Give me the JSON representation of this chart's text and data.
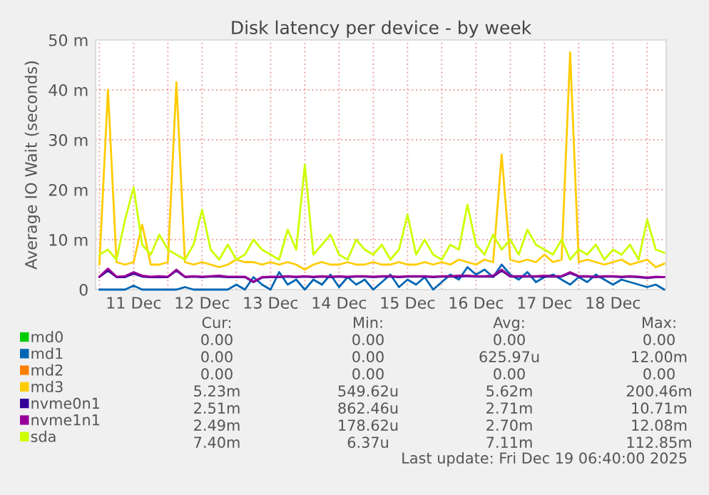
{
  "chart_data": {
    "type": "line",
    "title": "Disk latency per device - by week",
    "ylabel": "Average IO Wait (seconds)",
    "x": [
      "2025-12-11T00:00",
      "2025-12-11T03:00",
      "2025-12-11T06:00",
      "2025-12-11T09:00",
      "2025-12-11T12:00",
      "2025-12-11T15:00",
      "2025-12-11T18:00",
      "2025-12-11T21:00",
      "2025-12-12T00:00",
      "2025-12-12T03:00",
      "2025-12-12T06:00",
      "2025-12-12T09:00",
      "2025-12-12T12:00",
      "2025-12-12T15:00",
      "2025-12-12T18:00",
      "2025-12-12T21:00",
      "2025-12-13T00:00",
      "2025-12-13T03:00",
      "2025-12-13T06:00",
      "2025-12-13T09:00",
      "2025-12-13T12:00",
      "2025-12-13T15:00",
      "2025-12-13T18:00",
      "2025-12-13T21:00",
      "2025-12-14T00:00",
      "2025-12-14T03:00",
      "2025-12-14T06:00",
      "2025-12-14T09:00",
      "2025-12-14T12:00",
      "2025-12-14T15:00",
      "2025-12-14T18:00",
      "2025-12-14T21:00",
      "2025-12-15T00:00",
      "2025-12-15T03:00",
      "2025-12-15T06:00",
      "2025-12-15T09:00",
      "2025-12-15T12:00",
      "2025-12-15T15:00",
      "2025-12-15T18:00",
      "2025-12-15T21:00",
      "2025-12-16T00:00",
      "2025-12-16T03:00",
      "2025-12-16T06:00",
      "2025-12-16T09:00",
      "2025-12-16T12:00",
      "2025-12-16T15:00",
      "2025-12-16T18:00",
      "2025-12-16T21:00",
      "2025-12-17T00:00",
      "2025-12-17T03:00",
      "2025-12-17T06:00",
      "2025-12-17T09:00",
      "2025-12-17T12:00",
      "2025-12-17T15:00",
      "2025-12-17T18:00",
      "2025-12-17T21:00",
      "2025-12-18T00:00",
      "2025-12-18T03:00",
      "2025-12-18T06:00",
      "2025-12-18T09:00",
      "2025-12-18T12:00",
      "2025-12-18T15:00",
      "2025-12-18T18:00",
      "2025-12-18T21:00",
      "2025-12-19T00:00",
      "2025-12-19T03:00",
      "2025-12-19T06:00"
    ],
    "series": [
      {
        "name": "md0",
        "color": "#00cc00",
        "values": [
          null,
          null,
          null,
          null,
          null,
          null,
          null,
          null,
          null,
          null,
          null,
          null,
          null,
          null,
          null,
          null,
          null,
          null,
          null,
          null,
          null,
          null,
          null,
          null,
          null,
          null,
          null,
          null,
          null,
          null,
          null,
          null,
          null,
          null,
          null,
          null,
          null,
          null,
          null,
          null,
          null,
          null,
          null,
          null,
          null,
          null,
          null,
          null,
          null,
          null,
          null,
          null,
          null,
          null,
          null,
          null,
          null,
          null,
          null,
          null,
          null,
          null,
          null,
          null,
          null,
          null,
          null
        ]
      },
      {
        "name": "md1",
        "color": "#0066b3",
        "values": [
          0,
          0,
          0,
          0,
          0.8,
          0,
          0,
          0,
          0,
          0,
          0.5,
          0,
          0,
          0,
          0,
          0,
          1,
          0,
          2.5,
          1,
          0,
          3.5,
          1,
          2,
          0,
          2,
          1,
          3,
          0.5,
          2.5,
          1,
          2,
          0,
          1.5,
          3,
          0.5,
          2,
          1,
          2.5,
          0,
          1.5,
          3,
          2,
          4.5,
          3,
          4,
          2.5,
          5,
          3,
          2,
          3.5,
          1.5,
          2.5,
          3,
          2,
          1,
          2.5,
          1.5,
          3,
          2,
          1,
          2,
          1.5,
          1,
          0.5,
          1,
          0
        ]
      },
      {
        "name": "md2",
        "color": "#ff8000",
        "values": [
          null,
          null,
          null,
          null,
          null,
          null,
          null,
          null,
          null,
          null,
          null,
          null,
          null,
          null,
          null,
          null,
          null,
          null,
          null,
          null,
          null,
          null,
          null,
          null,
          null,
          null,
          null,
          null,
          null,
          null,
          null,
          null,
          null,
          null,
          null,
          null,
          null,
          null,
          null,
          null,
          null,
          null,
          null,
          null,
          null,
          null,
          null,
          null,
          null,
          null,
          null,
          null,
          null,
          null,
          null,
          null,
          null,
          null,
          null,
          null,
          null,
          null,
          null,
          null,
          null,
          null,
          null
        ]
      },
      {
        "name": "md3",
        "color": "#ffcc00",
        "values": [
          5,
          40,
          5.5,
          5,
          5.5,
          13,
          5,
          5,
          5.5,
          41.5,
          5.5,
          5,
          5.5,
          5,
          4.5,
          5,
          6,
          5.5,
          5.5,
          5,
          5.5,
          5,
          5.5,
          5,
          4,
          5,
          5.5,
          5,
          5,
          5.5,
          5,
          5,
          5.5,
          5,
          5,
          5.5,
          5,
          5,
          5.5,
          5,
          5.5,
          5,
          6,
          5.5,
          5,
          6,
          5.5,
          27,
          6,
          5.5,
          6,
          5.5,
          7,
          5.5,
          6,
          47.5,
          5.5,
          6,
          5.5,
          5,
          5.5,
          6,
          5,
          5.5,
          6,
          4.5,
          5.2
        ]
      },
      {
        "name": "nvme0n1",
        "color": "#330099",
        "values": [
          2.5,
          3.8,
          2.5,
          2.5,
          3.2,
          2.6,
          2.5,
          2.5,
          2.5,
          3.8,
          2.5,
          2.6,
          2.5,
          2.6,
          2.6,
          2.5,
          2.5,
          2.5,
          1.5,
          2.4,
          2.5,
          2.5,
          2.6,
          2.5,
          2.6,
          2.5,
          2.6,
          2.5,
          2.6,
          2.5,
          2.6,
          2.6,
          2.5,
          2.6,
          2.6,
          2.5,
          2.6,
          2.6,
          2.6,
          2.5,
          2.6,
          2.6,
          2.6,
          2.7,
          2.6,
          2.6,
          2.6,
          3.8,
          2.6,
          2.6,
          2.6,
          2.6,
          2.6,
          2.6,
          2.6,
          3.3,
          2.6,
          2.6,
          2.5,
          2.6,
          2.6,
          2.5,
          2.6,
          2.5,
          2.3,
          2.5,
          2.5
        ]
      },
      {
        "name": "nvme1n1",
        "color": "#990099",
        "values": [
          2.6,
          4.2,
          2.6,
          2.7,
          3.5,
          2.8,
          2.6,
          2.7,
          2.6,
          4,
          2.6,
          2.7,
          2.6,
          2.7,
          2.8,
          2.6,
          2.6,
          2.6,
          1.6,
          2.5,
          2.6,
          2.6,
          2.7,
          2.6,
          2.7,
          2.6,
          2.7,
          2.6,
          2.7,
          2.6,
          2.7,
          2.7,
          2.6,
          2.7,
          2.7,
          2.6,
          2.7,
          2.7,
          2.7,
          2.6,
          2.7,
          2.7,
          2.8,
          2.8,
          2.7,
          2.7,
          2.8,
          4,
          2.7,
          2.7,
          2.7,
          2.7,
          2.8,
          2.7,
          2.7,
          3.5,
          2.7,
          2.7,
          2.6,
          2.7,
          2.7,
          2.6,
          2.7,
          2.6,
          2.4,
          2.6,
          2.5
        ]
      },
      {
        "name": "sda",
        "color": "#ccff00",
        "values": [
          7,
          8,
          6,
          14,
          20.5,
          9,
          7,
          11,
          8,
          7,
          6,
          9,
          16,
          8,
          6,
          9,
          6,
          7,
          10,
          8,
          7,
          6,
          12,
          8,
          25,
          7,
          9,
          11,
          7,
          6,
          10,
          8,
          7,
          9,
          6,
          8,
          15,
          7,
          10,
          7,
          6,
          9,
          8,
          17,
          9,
          7,
          11,
          8,
          10,
          7,
          12,
          9,
          8,
          7,
          10,
          6,
          8,
          7,
          9,
          6,
          8,
          7,
          9,
          6,
          14,
          8,
          7.4
        ]
      }
    ],
    "xlim": [
      "2025-12-10T22:40",
      "2025-12-19T06:40"
    ],
    "xticks": [
      {
        "value": "2025-12-11T00:00",
        "label": null
      },
      {
        "value": "2025-12-11T12:00",
        "label": "11 Dec"
      },
      {
        "value": "2025-12-12T00:00",
        "label": null
      },
      {
        "value": "2025-12-12T12:00",
        "label": "12 Dec"
      },
      {
        "value": "2025-12-13T00:00",
        "label": null
      },
      {
        "value": "2025-12-13T12:00",
        "label": "13 Dec"
      },
      {
        "value": "2025-12-14T00:00",
        "label": null
      },
      {
        "value": "2025-12-14T12:00",
        "label": "14 Dec"
      },
      {
        "value": "2025-12-15T00:00",
        "label": null
      },
      {
        "value": "2025-12-15T12:00",
        "label": "15 Dec"
      },
      {
        "value": "2025-12-16T00:00",
        "label": null
      },
      {
        "value": "2025-12-16T12:00",
        "label": "16 Dec"
      },
      {
        "value": "2025-12-17T00:00",
        "label": null
      },
      {
        "value": "2025-12-17T12:00",
        "label": "17 Dec"
      },
      {
        "value": "2025-12-18T00:00",
        "label": null
      },
      {
        "value": "2025-12-18T12:00",
        "label": "18 Dec"
      },
      {
        "value": "2025-12-19T00:00",
        "label": null
      }
    ],
    "ylim": [
      0,
      50
    ],
    "yticks": [
      0,
      {
        "value": 10,
        "label": "10 m"
      },
      {
        "value": 20,
        "label": "20 m"
      },
      {
        "value": 30,
        "label": "30 m"
      },
      {
        "value": 40,
        "label": "40 m"
      },
      {
        "value": 50,
        "label": "50 m"
      }
    ],
    "grid": true,
    "legend": "bottom",
    "marker": "none",
    "line_style": "solid",
    "annotations": [
      "Cur:",
      "Min:",
      "Avg:",
      "Max:",
      "0.00",
      "0.00",
      "0.00",
      "0.00",
      "0.00",
      "0.00",
      "625.97u",
      "12.00m",
      "0.00",
      "0.00",
      "0.00",
      "0.00",
      "5.23m",
      "549.62u",
      "5.62m",
      "200.46m",
      "2.51m",
      "862.46u",
      "2.71m",
      "10.71m",
      "2.49m",
      "178.62u",
      "2.70m",
      "12.08m",
      "7.40m",
      "6.37u",
      "7.11m",
      "112.85m",
      "Last update: Fri Dec 19 06:40:00 2025"
    ]
  }
}
